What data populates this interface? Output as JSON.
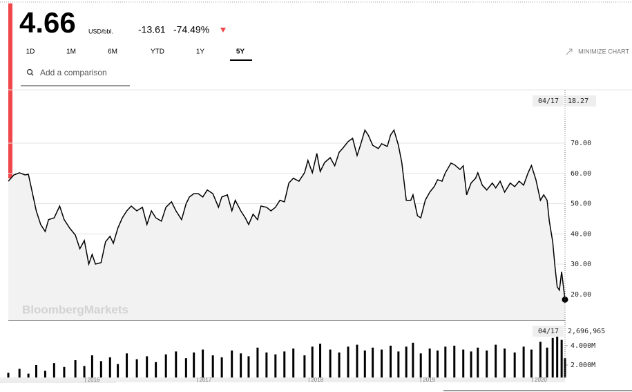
{
  "header": {
    "price": "4.66",
    "unit": "USD/bbl.",
    "change": "-13.61",
    "change_pct": "-74.49%",
    "ranges": [
      "1D",
      "1M",
      "6M",
      "YTD",
      "1Y",
      "5Y"
    ],
    "active_range": 5,
    "minimize": "MINIMIZE CHART",
    "search_placeholder": "Add a comparison",
    "watermark": "BloombergMarkets"
  },
  "chart_data": [
    {
      "type": "line",
      "color": "#000000",
      "area_color": "#f2f2f2",
      "grid": true,
      "xlim": [
        2015.31,
        2020.29
      ],
      "ylim": [
        11.5,
        87.6
      ],
      "yticks": [
        {
          "value": 20,
          "label": "20.00"
        },
        {
          "value": 30,
          "label": "30.00"
        },
        {
          "value": 40,
          "label": "40.00"
        },
        {
          "value": 50,
          "label": "50.00"
        },
        {
          "value": 60,
          "label": "60.00"
        },
        {
          "value": 70,
          "label": "70.00"
        }
      ],
      "crosshair": {
        "date": "04/17"
      },
      "x": [
        2015.31,
        2015.36,
        2015.41,
        2015.46,
        2015.49,
        2015.52,
        2015.56,
        2015.6,
        2015.64,
        2015.67,
        2015.72,
        2015.77,
        2015.81,
        2015.86,
        2015.91,
        2015.95,
        2015.99,
        2016.03,
        2016.06,
        2016.09,
        2016.14,
        2016.18,
        2016.22,
        2016.25,
        2016.29,
        2016.33,
        2016.37,
        2016.41,
        2016.46,
        2016.51,
        2016.55,
        2016.59,
        2016.63,
        2016.68,
        2016.72,
        2016.77,
        2016.81,
        2016.86,
        2016.9,
        2016.93,
        2016.97,
        2017.01,
        2017.05,
        2017.09,
        2017.14,
        2017.19,
        2017.22,
        2017.27,
        2017.31,
        2017.34,
        2017.39,
        2017.43,
        2017.46,
        2017.5,
        2017.54,
        2017.57,
        2017.62,
        2017.66,
        2017.7,
        2017.74,
        2017.78,
        2017.82,
        2017.86,
        2017.91,
        2017.96,
        2017.99,
        2018.03,
        2018.07,
        2018.1,
        2018.14,
        2018.19,
        2018.23,
        2018.27,
        2018.3,
        2018.35,
        2018.39,
        2018.43,
        2018.46,
        2018.5,
        2018.53,
        2018.57,
        2018.62,
        2018.65,
        2018.7,
        2018.73,
        2018.76,
        2018.8,
        2018.83,
        2018.87,
        2018.91,
        2018.93,
        2018.97,
        2019.0,
        2019.04,
        2019.08,
        2019.12,
        2019.15,
        2019.19,
        2019.22,
        2019.27,
        2019.3,
        2019.35,
        2019.38,
        2019.41,
        2019.45,
        2019.49,
        2019.51,
        2019.55,
        2019.59,
        2019.64,
        2019.67,
        2019.71,
        2019.75,
        2019.8,
        2019.84,
        2019.88,
        2019.92,
        2019.96,
        2019.99,
        2020.03,
        2020.07,
        2020.1,
        2020.13,
        2020.15,
        2020.18,
        2020.2,
        2020.22,
        2020.24,
        2020.26,
        2020.29
      ],
      "values": [
        57.4,
        59.5,
        60.2,
        59.5,
        59.7,
        54.5,
        47.6,
        43.1,
        40.8,
        44.7,
        45.3,
        49.2,
        44.7,
        41.9,
        39.6,
        35.1,
        37.8,
        30,
        33.2,
        30,
        30.5,
        37.4,
        39.2,
        36.9,
        41.9,
        45.3,
        47.6,
        49.2,
        47.6,
        48.8,
        43.1,
        47.6,
        45.3,
        44.2,
        48.8,
        50.6,
        47.6,
        44.7,
        49.9,
        52.2,
        53.3,
        53.3,
        52.2,
        54.5,
        53.3,
        48.8,
        52.2,
        52.9,
        47.6,
        51.1,
        47.6,
        45.3,
        43.1,
        46.5,
        44.7,
        49.2,
        48.8,
        47.6,
        48.8,
        51.1,
        50.6,
        56.8,
        58.4,
        57.4,
        60.2,
        64.3,
        60.2,
        66.6,
        60.6,
        63.6,
        65.2,
        62.5,
        67,
        68.2,
        70.5,
        71.6,
        65.9,
        69.3,
        74.3,
        72.7,
        69.3,
        68.2,
        69.8,
        68.9,
        72.7,
        74.3,
        69.3,
        63.6,
        51.1,
        51.1,
        52.9,
        46,
        45.3,
        51.1,
        53.8,
        55.6,
        57.9,
        57.4,
        60.2,
        63.4,
        62.9,
        61.3,
        62.5,
        52.9,
        56.8,
        58.4,
        60.2,
        56.1,
        54.5,
        56.8,
        55.2,
        57.4,
        53.8,
        56.8,
        55.6,
        57.4,
        56.1,
        60.2,
        62.6,
        57.9,
        51.1,
        52.9,
        51.1,
        44.2,
        37.4,
        29.4,
        22.5,
        21.4,
        27.5,
        18.27
      ]
    },
    {
      "type": "bar",
      "color": "#000000",
      "xlim": [
        2015.31,
        2020.29
      ],
      "ylim": [
        710000,
        6430000
      ],
      "xticks": [
        2016,
        2017,
        2018,
        2019,
        2020
      ],
      "yticks": [
        {
          "value": 2000000,
          "label": "2.000M"
        },
        {
          "value": 4000000,
          "label": "4.000M"
        }
      ],
      "crosshair": {
        "date": "04/17",
        "label": "2,696,965"
      },
      "x": [
        2015.31,
        2015.41,
        2015.49,
        2015.56,
        2015.64,
        2015.72,
        2015.81,
        2015.91,
        2015.99,
        2016.06,
        2016.14,
        2016.22,
        2016.29,
        2016.37,
        2016.46,
        2016.55,
        2016.63,
        2016.72,
        2016.81,
        2016.9,
        2016.97,
        2017.05,
        2017.14,
        2017.22,
        2017.31,
        2017.39,
        2017.46,
        2017.54,
        2017.62,
        2017.7,
        2017.78,
        2017.86,
        2017.96,
        2018.03,
        2018.1,
        2018.19,
        2018.27,
        2018.35,
        2018.43,
        2018.5,
        2018.57,
        2018.65,
        2018.73,
        2018.8,
        2018.87,
        2018.93,
        2019.0,
        2019.08,
        2019.15,
        2019.22,
        2019.3,
        2019.38,
        2019.45,
        2019.51,
        2019.59,
        2019.67,
        2019.75,
        2019.84,
        2019.92,
        2019.99,
        2020.07,
        2020.13,
        2020.18,
        2020.22,
        2020.26,
        2020.29
      ],
      "values": [
        1200000,
        1600000,
        1100000,
        2000000,
        1400000,
        2200000,
        1800000,
        2500000,
        1900000,
        3000000,
        2400000,
        2800000,
        2100000,
        3200000,
        2600000,
        2900000,
        2300000,
        3100000,
        3400000,
        2700000,
        3300000,
        3600000,
        3000000,
        2800000,
        3500000,
        3200000,
        2900000,
        3800000,
        3300000,
        3100000,
        3400000,
        3700000,
        3000000,
        3900000,
        4200000,
        3600000,
        3300000,
        3900000,
        4100000,
        3500000,
        3800000,
        3600000,
        4000000,
        3400000,
        3900000,
        4300000,
        3200000,
        3700000,
        3500000,
        3900000,
        4000000,
        3600000,
        3400000,
        3800000,
        3500000,
        4100000,
        3700000,
        3300000,
        3900000,
        3600000,
        4400000,
        3800000,
        4800000,
        5000000,
        4600000,
        2696965
      ]
    }
  ]
}
